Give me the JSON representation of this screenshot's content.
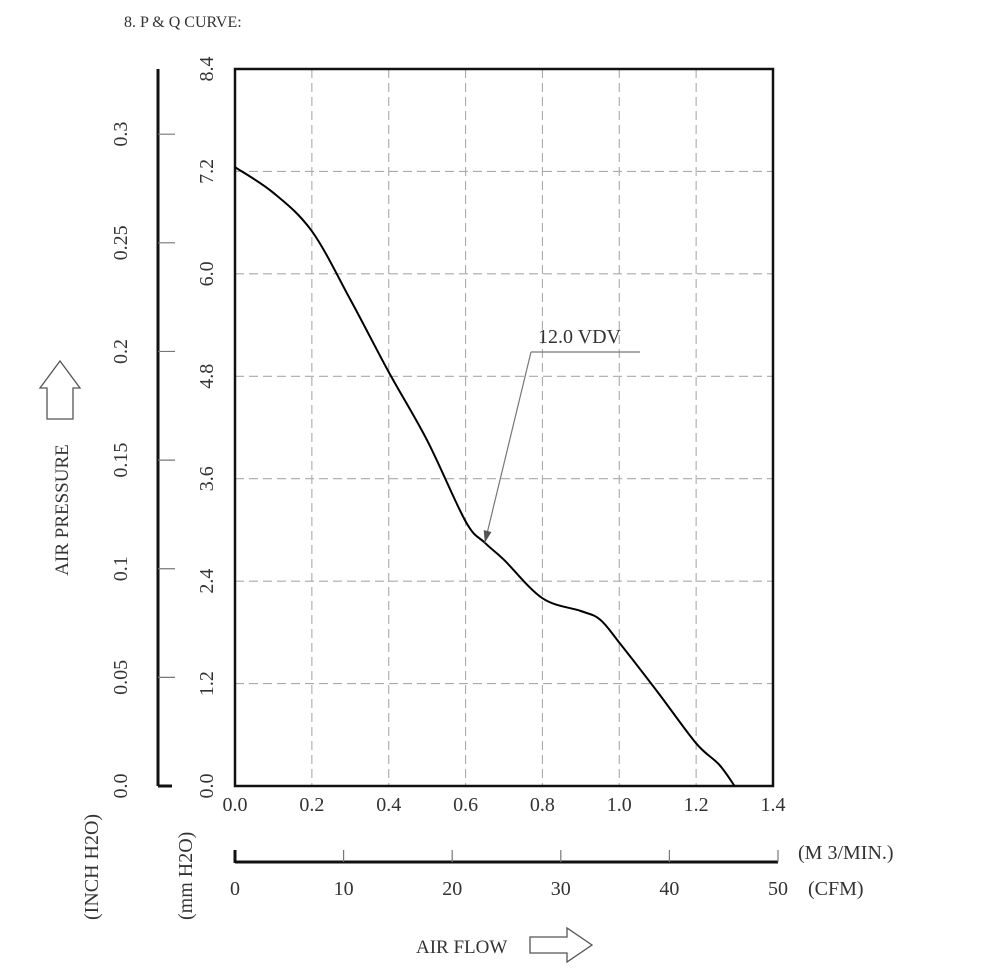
{
  "section_title": "8. P & Q CURVE:",
  "chart_data": {
    "type": "line",
    "title": "P & Q CURVE",
    "series": [
      {
        "name": "12.0 VDV",
        "x": [
          0.0,
          0.1,
          0.2,
          0.3,
          0.4,
          0.5,
          0.6,
          0.65,
          0.7,
          0.8,
          0.9,
          0.95,
          1.0,
          1.1,
          1.2,
          1.26,
          1.3
        ],
        "y": [
          7.25,
          6.95,
          6.5,
          5.7,
          4.85,
          4.05,
          3.1,
          2.85,
          2.65,
          2.2,
          2.05,
          1.95,
          1.68,
          1.1,
          0.5,
          0.25,
          0.0
        ]
      }
    ],
    "x_axis": {
      "label": "AIR FLOW",
      "primary": {
        "unit": "(M 3/MIN.)",
        "range": [
          0,
          1.4
        ],
        "ticks": [
          "0.0",
          "0.2",
          "0.4",
          "0.6",
          "0.8",
          "1.0",
          "1.2",
          "1.4"
        ]
      },
      "secondary": {
        "unit": "(CFM)",
        "range": [
          0,
          50
        ],
        "ticks": [
          "0",
          "10",
          "20",
          "30",
          "40",
          "50"
        ]
      }
    },
    "y_axis": {
      "label": "AIR PRESSURE",
      "primary": {
        "unit": "(mm H2O)",
        "range": [
          0,
          8.4
        ],
        "ticks": [
          "0.0",
          "1.2",
          "2.4",
          "3.6",
          "4.8",
          "6.0",
          "7.2",
          "8.4"
        ]
      },
      "secondary": {
        "unit": "(INCH H2O)",
        "range": [
          0,
          0.33
        ],
        "ticks": [
          "0.0",
          "0.05",
          "0.1",
          "0.15",
          "0.2",
          "0.25",
          "0.3"
        ]
      }
    },
    "annotation": {
      "text": "12.0 VDV",
      "points_to": {
        "x": 0.65,
        "y": 2.85
      }
    },
    "grid": true
  }
}
